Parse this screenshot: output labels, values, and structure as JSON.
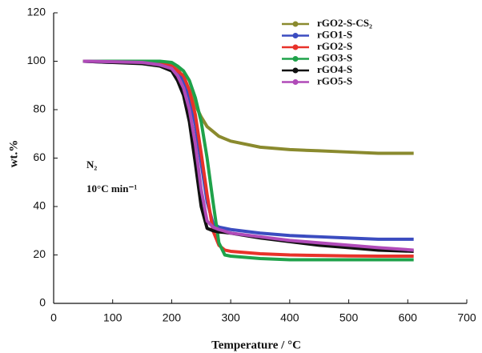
{
  "chart_data": {
    "type": "line",
    "xlabel": "Temperature / °C",
    "ylabel": "wt.%",
    "annotations": [
      "N₂",
      "10°C min⁻¹"
    ],
    "xlim": [
      0,
      700
    ],
    "xticks": [
      0,
      100,
      200,
      300,
      400,
      500,
      600,
      700
    ],
    "ylim": [
      0,
      120
    ],
    "yticks": [
      0,
      20,
      40,
      60,
      80,
      100,
      120
    ],
    "legend": "upper right",
    "x": [
      50,
      100,
      150,
      180,
      200,
      210,
      220,
      230,
      240,
      250,
      260,
      270,
      280,
      290,
      300,
      350,
      400,
      450,
      500,
      550,
      610
    ],
    "series": [
      {
        "name": "rGO2-S-CS₂",
        "color": "#8a8a2e",
        "values": [
          100,
          100,
          100,
          99.5,
          98.5,
          97,
          93,
          88,
          82,
          77,
          73,
          71,
          69,
          68,
          67,
          64.5,
          63.5,
          63,
          62.5,
          62,
          62
        ]
      },
      {
        "name": "rGO1-S",
        "color": "#3b4cc0",
        "values": [
          100,
          99.5,
          99.5,
          99,
          98,
          96,
          92,
          85,
          74,
          58,
          42,
          33,
          31.5,
          31,
          30.5,
          29,
          28,
          27.5,
          27,
          26.5,
          26.5
        ]
      },
      {
        "name": "rGO2-S",
        "color": "#e8322a",
        "values": [
          100,
          100,
          99.5,
          99,
          98,
          96,
          94,
          88,
          78,
          62,
          45,
          30,
          24,
          22,
          21.5,
          20.5,
          20,
          19.8,
          19.6,
          19.5,
          19.5
        ]
      },
      {
        "name": "rGO3-S",
        "color": "#1fa24a",
        "values": [
          100,
          100,
          100,
          100,
          99.5,
          98,
          96,
          92,
          85,
          75,
          60,
          42,
          25,
          20,
          19.5,
          18.5,
          18,
          18,
          18,
          18,
          18
        ]
      },
      {
        "name": "rGO4-S",
        "color": "#111111",
        "values": [
          100,
          99.5,
          99,
          98,
          96,
          92,
          86,
          75,
          58,
          40,
          31,
          30,
          29.5,
          29.3,
          29,
          27,
          25.5,
          24,
          23,
          22,
          21.5
        ]
      },
      {
        "name": "rGO5-S",
        "color": "#b04ab8",
        "values": [
          100,
          99.8,
          99.5,
          98.5,
          97,
          94,
          89,
          80,
          66,
          47,
          34,
          31.5,
          30.5,
          29.8,
          29,
          27.5,
          26,
          25,
          24,
          23,
          22
        ]
      }
    ]
  }
}
